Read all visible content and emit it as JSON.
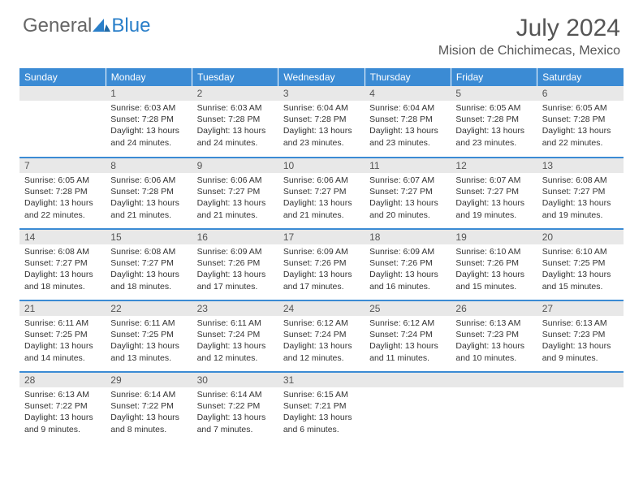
{
  "brand": {
    "part1": "General",
    "part2": "Blue"
  },
  "title": "July 2024",
  "location": "Mision de Chichimecas, Mexico",
  "colors": {
    "header_bg": "#3b8bd4",
    "header_text": "#ffffff",
    "daynum_bg": "#e8e8e8",
    "text": "#333333",
    "title_text": "#555555",
    "logo_blue": "#2a7fc9",
    "row_divider": "#3b8bd4"
  },
  "weekdays": [
    "Sunday",
    "Monday",
    "Tuesday",
    "Wednesday",
    "Thursday",
    "Friday",
    "Saturday"
  ],
  "weeks": [
    [
      null,
      {
        "n": "1",
        "sr": "Sunrise: 6:03 AM",
        "ss": "Sunset: 7:28 PM",
        "d1": "Daylight: 13 hours",
        "d2": "and 24 minutes."
      },
      {
        "n": "2",
        "sr": "Sunrise: 6:03 AM",
        "ss": "Sunset: 7:28 PM",
        "d1": "Daylight: 13 hours",
        "d2": "and 24 minutes."
      },
      {
        "n": "3",
        "sr": "Sunrise: 6:04 AM",
        "ss": "Sunset: 7:28 PM",
        "d1": "Daylight: 13 hours",
        "d2": "and 23 minutes."
      },
      {
        "n": "4",
        "sr": "Sunrise: 6:04 AM",
        "ss": "Sunset: 7:28 PM",
        "d1": "Daylight: 13 hours",
        "d2": "and 23 minutes."
      },
      {
        "n": "5",
        "sr": "Sunrise: 6:05 AM",
        "ss": "Sunset: 7:28 PM",
        "d1": "Daylight: 13 hours",
        "d2": "and 23 minutes."
      },
      {
        "n": "6",
        "sr": "Sunrise: 6:05 AM",
        "ss": "Sunset: 7:28 PM",
        "d1": "Daylight: 13 hours",
        "d2": "and 22 minutes."
      }
    ],
    [
      {
        "n": "7",
        "sr": "Sunrise: 6:05 AM",
        "ss": "Sunset: 7:28 PM",
        "d1": "Daylight: 13 hours",
        "d2": "and 22 minutes."
      },
      {
        "n": "8",
        "sr": "Sunrise: 6:06 AM",
        "ss": "Sunset: 7:28 PM",
        "d1": "Daylight: 13 hours",
        "d2": "and 21 minutes."
      },
      {
        "n": "9",
        "sr": "Sunrise: 6:06 AM",
        "ss": "Sunset: 7:27 PM",
        "d1": "Daylight: 13 hours",
        "d2": "and 21 minutes."
      },
      {
        "n": "10",
        "sr": "Sunrise: 6:06 AM",
        "ss": "Sunset: 7:27 PM",
        "d1": "Daylight: 13 hours",
        "d2": "and 21 minutes."
      },
      {
        "n": "11",
        "sr": "Sunrise: 6:07 AM",
        "ss": "Sunset: 7:27 PM",
        "d1": "Daylight: 13 hours",
        "d2": "and 20 minutes."
      },
      {
        "n": "12",
        "sr": "Sunrise: 6:07 AM",
        "ss": "Sunset: 7:27 PM",
        "d1": "Daylight: 13 hours",
        "d2": "and 19 minutes."
      },
      {
        "n": "13",
        "sr": "Sunrise: 6:08 AM",
        "ss": "Sunset: 7:27 PM",
        "d1": "Daylight: 13 hours",
        "d2": "and 19 minutes."
      }
    ],
    [
      {
        "n": "14",
        "sr": "Sunrise: 6:08 AM",
        "ss": "Sunset: 7:27 PM",
        "d1": "Daylight: 13 hours",
        "d2": "and 18 minutes."
      },
      {
        "n": "15",
        "sr": "Sunrise: 6:08 AM",
        "ss": "Sunset: 7:27 PM",
        "d1": "Daylight: 13 hours",
        "d2": "and 18 minutes."
      },
      {
        "n": "16",
        "sr": "Sunrise: 6:09 AM",
        "ss": "Sunset: 7:26 PM",
        "d1": "Daylight: 13 hours",
        "d2": "and 17 minutes."
      },
      {
        "n": "17",
        "sr": "Sunrise: 6:09 AM",
        "ss": "Sunset: 7:26 PM",
        "d1": "Daylight: 13 hours",
        "d2": "and 17 minutes."
      },
      {
        "n": "18",
        "sr": "Sunrise: 6:09 AM",
        "ss": "Sunset: 7:26 PM",
        "d1": "Daylight: 13 hours",
        "d2": "and 16 minutes."
      },
      {
        "n": "19",
        "sr": "Sunrise: 6:10 AM",
        "ss": "Sunset: 7:26 PM",
        "d1": "Daylight: 13 hours",
        "d2": "and 15 minutes."
      },
      {
        "n": "20",
        "sr": "Sunrise: 6:10 AM",
        "ss": "Sunset: 7:25 PM",
        "d1": "Daylight: 13 hours",
        "d2": "and 15 minutes."
      }
    ],
    [
      {
        "n": "21",
        "sr": "Sunrise: 6:11 AM",
        "ss": "Sunset: 7:25 PM",
        "d1": "Daylight: 13 hours",
        "d2": "and 14 minutes."
      },
      {
        "n": "22",
        "sr": "Sunrise: 6:11 AM",
        "ss": "Sunset: 7:25 PM",
        "d1": "Daylight: 13 hours",
        "d2": "and 13 minutes."
      },
      {
        "n": "23",
        "sr": "Sunrise: 6:11 AM",
        "ss": "Sunset: 7:24 PM",
        "d1": "Daylight: 13 hours",
        "d2": "and 12 minutes."
      },
      {
        "n": "24",
        "sr": "Sunrise: 6:12 AM",
        "ss": "Sunset: 7:24 PM",
        "d1": "Daylight: 13 hours",
        "d2": "and 12 minutes."
      },
      {
        "n": "25",
        "sr": "Sunrise: 6:12 AM",
        "ss": "Sunset: 7:24 PM",
        "d1": "Daylight: 13 hours",
        "d2": "and 11 minutes."
      },
      {
        "n": "26",
        "sr": "Sunrise: 6:13 AM",
        "ss": "Sunset: 7:23 PM",
        "d1": "Daylight: 13 hours",
        "d2": "and 10 minutes."
      },
      {
        "n": "27",
        "sr": "Sunrise: 6:13 AM",
        "ss": "Sunset: 7:23 PM",
        "d1": "Daylight: 13 hours",
        "d2": "and 9 minutes."
      }
    ],
    [
      {
        "n": "28",
        "sr": "Sunrise: 6:13 AM",
        "ss": "Sunset: 7:22 PM",
        "d1": "Daylight: 13 hours",
        "d2": "and 9 minutes."
      },
      {
        "n": "29",
        "sr": "Sunrise: 6:14 AM",
        "ss": "Sunset: 7:22 PM",
        "d1": "Daylight: 13 hours",
        "d2": "and 8 minutes."
      },
      {
        "n": "30",
        "sr": "Sunrise: 6:14 AM",
        "ss": "Sunset: 7:22 PM",
        "d1": "Daylight: 13 hours",
        "d2": "and 7 minutes."
      },
      {
        "n": "31",
        "sr": "Sunrise: 6:15 AM",
        "ss": "Sunset: 7:21 PM",
        "d1": "Daylight: 13 hours",
        "d2": "and 6 minutes."
      },
      null,
      null,
      null
    ]
  ]
}
